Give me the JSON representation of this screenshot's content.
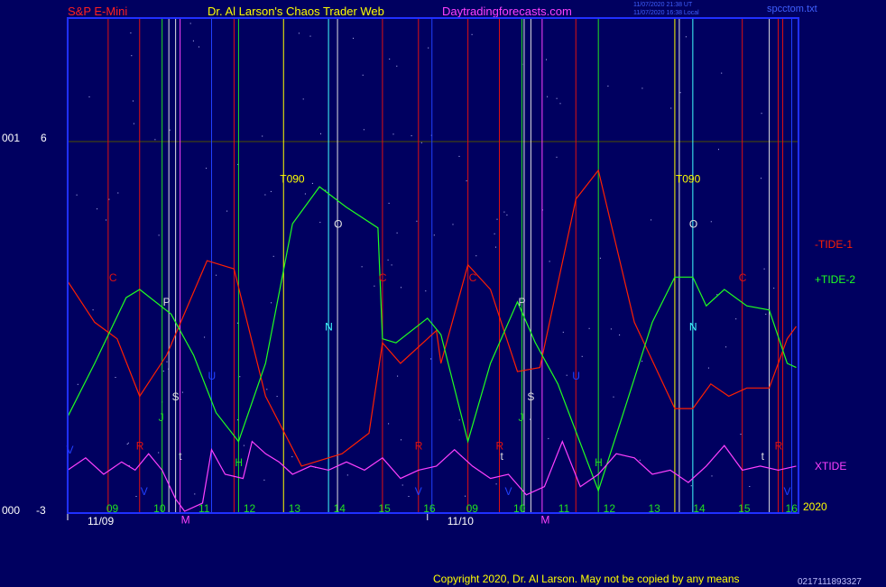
{
  "header": {
    "instrument": "S&P E-Mini",
    "site": "Dr. Al Larson's Chaos Trader Web",
    "url": "Daytradingforecasts.com",
    "timestamp1": "11/07/2020 21:38 UT",
    "timestamp2": "11/07/2020 16:38 Local",
    "filename": "spcctom.txt"
  },
  "axis": {
    "y_top_prefix": "001",
    "y_top": "6",
    "y_bottom_prefix": "000",
    "y_bottom": "-3",
    "year": "2020"
  },
  "footer": {
    "copyright": "Copyright 2020, Dr. Al Larson. May not be copied by any means",
    "counter": "0217111893327"
  },
  "colors": {
    "background": "#000060",
    "frame": "#2030ff",
    "tide1": "#ff2000",
    "tide2": "#20ff20",
    "xtide": "#ff40ff",
    "labels_yellow": "#ffff00"
  },
  "chart_data": {
    "type": "line",
    "x_hour_labels": [
      "09",
      "10",
      "11",
      "12",
      "13",
      "14",
      "15",
      "16",
      "09",
      "10",
      "11",
      "12",
      "13",
      "14",
      "15",
      "16"
    ],
    "x_date_labels": [
      "11/09",
      "11/10"
    ],
    "ylim": [
      -3,
      6
    ],
    "legend": [
      "-TIDE-1",
      "+TIDE-2",
      "XTIDE"
    ],
    "series": [
      {
        "name": "-TIDE-1",
        "points": [
          [
            0,
            2.6
          ],
          [
            0.6,
            1.6
          ],
          [
            1.1,
            1.2
          ],
          [
            1.6,
            -0.2
          ],
          [
            2.2,
            0.8
          ],
          [
            3.1,
            3.1
          ],
          [
            3.7,
            2.9
          ],
          [
            4.4,
            -0.2
          ],
          [
            5.2,
            -1.9
          ],
          [
            6.1,
            -1.6
          ],
          [
            6.7,
            -1.1
          ],
          [
            7.0,
            1.1
          ],
          [
            7.4,
            0.6
          ],
          [
            8.2,
            1.4
          ],
          [
            8.3,
            0.6
          ],
          [
            8.9,
            3.0
          ],
          [
            9.4,
            2.4
          ],
          [
            10.0,
            0.4
          ],
          [
            10.5,
            0.5
          ],
          [
            11.3,
            4.6
          ],
          [
            11.8,
            5.3
          ],
          [
            12.6,
            1.6
          ],
          [
            13.5,
            -0.5
          ],
          [
            13.9,
            -0.5
          ],
          [
            14.3,
            0.1
          ],
          [
            14.7,
            -0.2
          ],
          [
            15.1,
            0.0
          ],
          [
            15.6,
            0.0
          ],
          [
            16.0,
            1.2
          ],
          [
            16.2,
            1.5
          ]
        ]
      },
      {
        "name": "+TIDE-2",
        "points": [
          [
            0,
            -0.7
          ],
          [
            0.6,
            0.6
          ],
          [
            1.3,
            2.2
          ],
          [
            1.6,
            2.4
          ],
          [
            2.3,
            1.8
          ],
          [
            2.8,
            0.8
          ],
          [
            3.3,
            -0.6
          ],
          [
            3.8,
            -1.3
          ],
          [
            4.4,
            0.6
          ],
          [
            5.0,
            4.0
          ],
          [
            5.6,
            4.9
          ],
          [
            6.2,
            4.4
          ],
          [
            6.9,
            3.9
          ],
          [
            7.0,
            1.2
          ],
          [
            7.3,
            1.1
          ],
          [
            8.0,
            1.7
          ],
          [
            8.3,
            1.3
          ],
          [
            8.9,
            -1.3
          ],
          [
            9.4,
            0.6
          ],
          [
            10.0,
            2.1
          ],
          [
            10.4,
            1.1
          ],
          [
            10.9,
            0.1
          ],
          [
            11.8,
            -2.5
          ],
          [
            12.3,
            -0.8
          ],
          [
            13.0,
            1.6
          ],
          [
            13.5,
            2.7
          ],
          [
            13.9,
            2.7
          ],
          [
            14.2,
            2.0
          ],
          [
            14.6,
            2.4
          ],
          [
            15.1,
            2.0
          ],
          [
            15.6,
            1.9
          ],
          [
            16.0,
            0.6
          ],
          [
            16.2,
            0.5
          ]
        ]
      },
      {
        "name": "XTIDE",
        "points": [
          [
            0,
            -2.0
          ],
          [
            0.4,
            -1.7
          ],
          [
            0.8,
            -2.1
          ],
          [
            1.2,
            -1.8
          ],
          [
            1.5,
            -2.0
          ],
          [
            1.8,
            -1.6
          ],
          [
            2.1,
            -2.0
          ],
          [
            2.4,
            -2.7
          ],
          [
            2.6,
            -3.0
          ],
          [
            3.0,
            -2.8
          ],
          [
            3.2,
            -1.5
          ],
          [
            3.5,
            -2.1
          ],
          [
            3.9,
            -2.2
          ],
          [
            4.1,
            -1.3
          ],
          [
            4.4,
            -1.6
          ],
          [
            4.7,
            -1.8
          ],
          [
            5.0,
            -2.1
          ],
          [
            5.4,
            -1.9
          ],
          [
            5.8,
            -2.0
          ],
          [
            6.2,
            -1.8
          ],
          [
            6.6,
            -2.0
          ],
          [
            7.0,
            -1.7
          ],
          [
            7.4,
            -2.2
          ],
          [
            7.8,
            -2.0
          ],
          [
            8.2,
            -1.9
          ],
          [
            8.6,
            -1.5
          ],
          [
            9.0,
            -1.9
          ],
          [
            9.4,
            -2.2
          ],
          [
            9.8,
            -2.1
          ],
          [
            10.2,
            -2.6
          ],
          [
            10.6,
            -2.4
          ],
          [
            11.0,
            -1.3
          ],
          [
            11.4,
            -2.4
          ],
          [
            11.8,
            -2.1
          ],
          [
            12.2,
            -1.6
          ],
          [
            12.6,
            -1.7
          ],
          [
            13.0,
            -2.1
          ],
          [
            13.4,
            -2.0
          ],
          [
            13.8,
            -2.3
          ],
          [
            14.2,
            -1.9
          ],
          [
            14.6,
            -1.4
          ],
          [
            15.0,
            -2.0
          ],
          [
            15.4,
            -1.9
          ],
          [
            15.8,
            -2.0
          ],
          [
            16.2,
            -1.9
          ]
        ]
      }
    ],
    "vertical_lines": [
      {
        "x": 0.0,
        "color": "red"
      },
      {
        "x": 0.9,
        "color": "red"
      },
      {
        "x": 1.6,
        "color": "red"
      },
      {
        "x": 2.1,
        "color": "green"
      },
      {
        "x": 2.25,
        "color": "white"
      },
      {
        "x": 2.4,
        "color": "white"
      },
      {
        "x": 2.5,
        "color": "magenta"
      },
      {
        "x": 3.2,
        "color": "blue"
      },
      {
        "x": 3.7,
        "color": "red"
      },
      {
        "x": 3.8,
        "color": "green"
      },
      {
        "x": 4.8,
        "color": "yellow"
      },
      {
        "x": 5.8,
        "color": "cyan"
      },
      {
        "x": 6.0,
        "color": "white"
      },
      {
        "x": 7.0,
        "color": "red"
      },
      {
        "x": 7.8,
        "color": "red"
      },
      {
        "x": 8.1,
        "color": "blue"
      },
      {
        "x": 8.9,
        "color": "red"
      },
      {
        "x": 9.6,
        "color": "red"
      },
      {
        "x": 10.1,
        "color": "green"
      },
      {
        "x": 10.15,
        "color": "white"
      },
      {
        "x": 10.3,
        "color": "white"
      },
      {
        "x": 10.55,
        "color": "magenta"
      },
      {
        "x": 11.3,
        "color": "red"
      },
      {
        "x": 11.8,
        "color": "green"
      },
      {
        "x": 13.5,
        "color": "yellow"
      },
      {
        "x": 13.6,
        "color": "white"
      },
      {
        "x": 13.9,
        "color": "cyan"
      },
      {
        "x": 15.0,
        "color": "red"
      },
      {
        "x": 15.6,
        "color": "white"
      },
      {
        "x": 15.8,
        "color": "red"
      },
      {
        "x": 15.9,
        "color": "red"
      },
      {
        "x": 16.1,
        "color": "blue"
      }
    ],
    "annotations": [
      {
        "t": "T090",
        "x": 4.8,
        "y": 5.0,
        "color": "yellow"
      },
      {
        "t": "T090",
        "x": 13.6,
        "y": 5.0,
        "color": "yellow"
      },
      {
        "t": "C",
        "x": 1.0,
        "y": 2.6,
        "color": "red"
      },
      {
        "t": "C",
        "x": 7.0,
        "y": 2.6,
        "color": "red"
      },
      {
        "t": "C",
        "x": 9.0,
        "y": 2.6,
        "color": "red"
      },
      {
        "t": "C",
        "x": 15.0,
        "y": 2.6,
        "color": "red"
      },
      {
        "t": "P",
        "x": 2.2,
        "y": 2.0,
        "color": "white"
      },
      {
        "t": "P",
        "x": 10.1,
        "y": 2.0,
        "color": "white"
      },
      {
        "t": "O",
        "x": 6.0,
        "y": 3.9,
        "color": "white"
      },
      {
        "t": "O",
        "x": 13.9,
        "y": 3.9,
        "color": "white"
      },
      {
        "t": "U",
        "x": 3.2,
        "y": 0.2,
        "color": "blue"
      },
      {
        "t": "U",
        "x": 11.3,
        "y": 0.2,
        "color": "blue"
      },
      {
        "t": "N",
        "x": 5.8,
        "y": 1.4,
        "color": "cyan"
      },
      {
        "t": "N",
        "x": 13.9,
        "y": 1.4,
        "color": "cyan"
      },
      {
        "t": "S",
        "x": 2.4,
        "y": -0.3,
        "color": "white"
      },
      {
        "t": "S",
        "x": 10.3,
        "y": -0.3,
        "color": "white"
      },
      {
        "t": "J",
        "x": 2.1,
        "y": -0.8,
        "color": "green"
      },
      {
        "t": "J",
        "x": 10.1,
        "y": -0.8,
        "color": "green"
      },
      {
        "t": "R",
        "x": 1.6,
        "y": -1.5,
        "color": "red"
      },
      {
        "t": "R",
        "x": 7.8,
        "y": -1.5,
        "color": "red"
      },
      {
        "t": "R",
        "x": 9.6,
        "y": -1.5,
        "color": "red"
      },
      {
        "t": "R",
        "x": 15.8,
        "y": -1.5,
        "color": "red"
      },
      {
        "t": "H",
        "x": 3.8,
        "y": -1.9,
        "color": "green"
      },
      {
        "t": "H",
        "x": 11.8,
        "y": -1.9,
        "color": "green"
      },
      {
        "t": "V",
        "x": 1.7,
        "y": -2.6,
        "color": "blue"
      },
      {
        "t": "V",
        "x": 7.8,
        "y": -2.6,
        "color": "blue"
      },
      {
        "t": "V",
        "x": 9.8,
        "y": -2.6,
        "color": "blue"
      },
      {
        "t": "V",
        "x": 16.0,
        "y": -2.6,
        "color": "blue"
      },
      {
        "t": "V",
        "x": 0.05,
        "y": -1.6,
        "color": "blue"
      },
      {
        "t": "M",
        "x": 2.6,
        "y": -3.3,
        "color": "magenta"
      },
      {
        "t": "M",
        "x": 10.6,
        "y": -3.3,
        "color": "magenta"
      },
      {
        "t": "t",
        "x": 2.55,
        "y": -1.75,
        "color": "white"
      },
      {
        "t": "t",
        "x": 9.7,
        "y": -1.75,
        "color": "white"
      },
      {
        "t": "t",
        "x": 15.5,
        "y": -1.75,
        "color": "white"
      }
    ]
  }
}
